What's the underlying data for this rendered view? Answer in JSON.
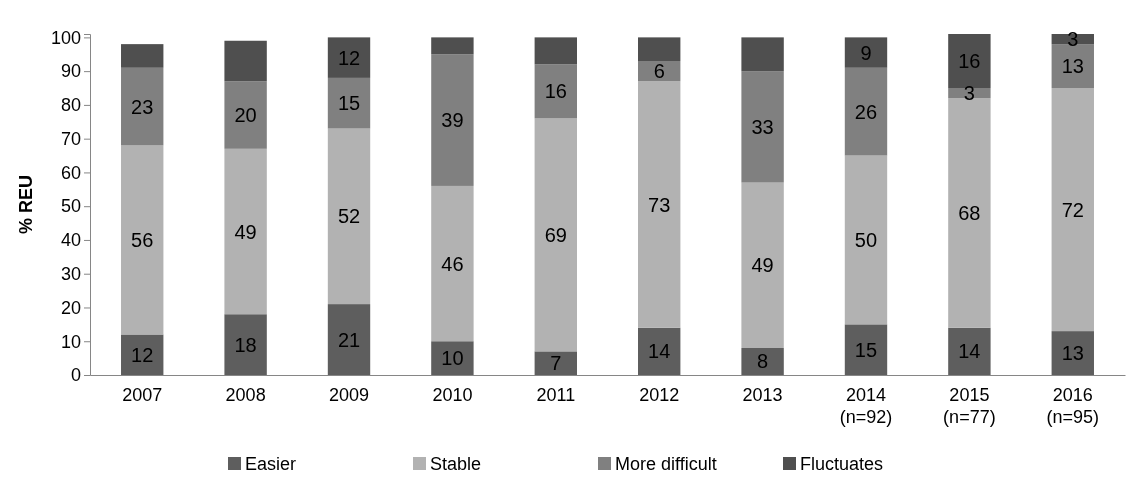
{
  "chart_data": {
    "type": "bar",
    "stacked": true,
    "ylabel": "% REU",
    "categories": [
      "2007",
      "2008",
      "2009",
      "2010",
      "2011",
      "2012",
      "2013",
      "2014\n(n=92)",
      "2015\n(n=77)",
      "2016\n(n=95)"
    ],
    "series": [
      {
        "name": "Easier",
        "color": "#5e5e5e",
        "values": [
          12,
          18,
          21,
          10,
          7,
          14,
          8,
          15,
          14,
          13
        ],
        "value_labels": [
          "12",
          "18",
          "21",
          "10",
          "7",
          "14",
          "8",
          "15",
          "14",
          "13"
        ]
      },
      {
        "name": "Stable",
        "color": "#b2b2b2",
        "values": [
          56,
          49,
          52,
          46,
          69,
          73,
          49,
          50,
          68,
          72
        ],
        "value_labels": [
          "56",
          "49",
          "52",
          "46",
          "69",
          "73",
          "49",
          "50",
          "68",
          "72"
        ]
      },
      {
        "name": "More difficult",
        "color": "#808080",
        "values": [
          23,
          20,
          15,
          39,
          16,
          6,
          33,
          26,
          3,
          13
        ],
        "value_labels": [
          "23",
          "20",
          "15",
          "39",
          "16",
          "6",
          "33",
          "26",
          "3",
          "13"
        ]
      },
      {
        "name": "Fluctuates",
        "color": "#4f4f4f",
        "values": [
          7,
          12,
          12,
          5,
          8,
          7,
          10,
          9,
          16,
          3
        ],
        "value_labels": [
          null,
          null,
          "12",
          null,
          null,
          null,
          null,
          "9",
          "16",
          "3"
        ]
      }
    ],
    "ylim": [
      0,
      101
    ],
    "yticks": [
      0,
      10,
      20,
      30,
      40,
      50,
      60,
      70,
      80,
      90,
      100
    ],
    "grid": false,
    "legend": "bottom"
  }
}
